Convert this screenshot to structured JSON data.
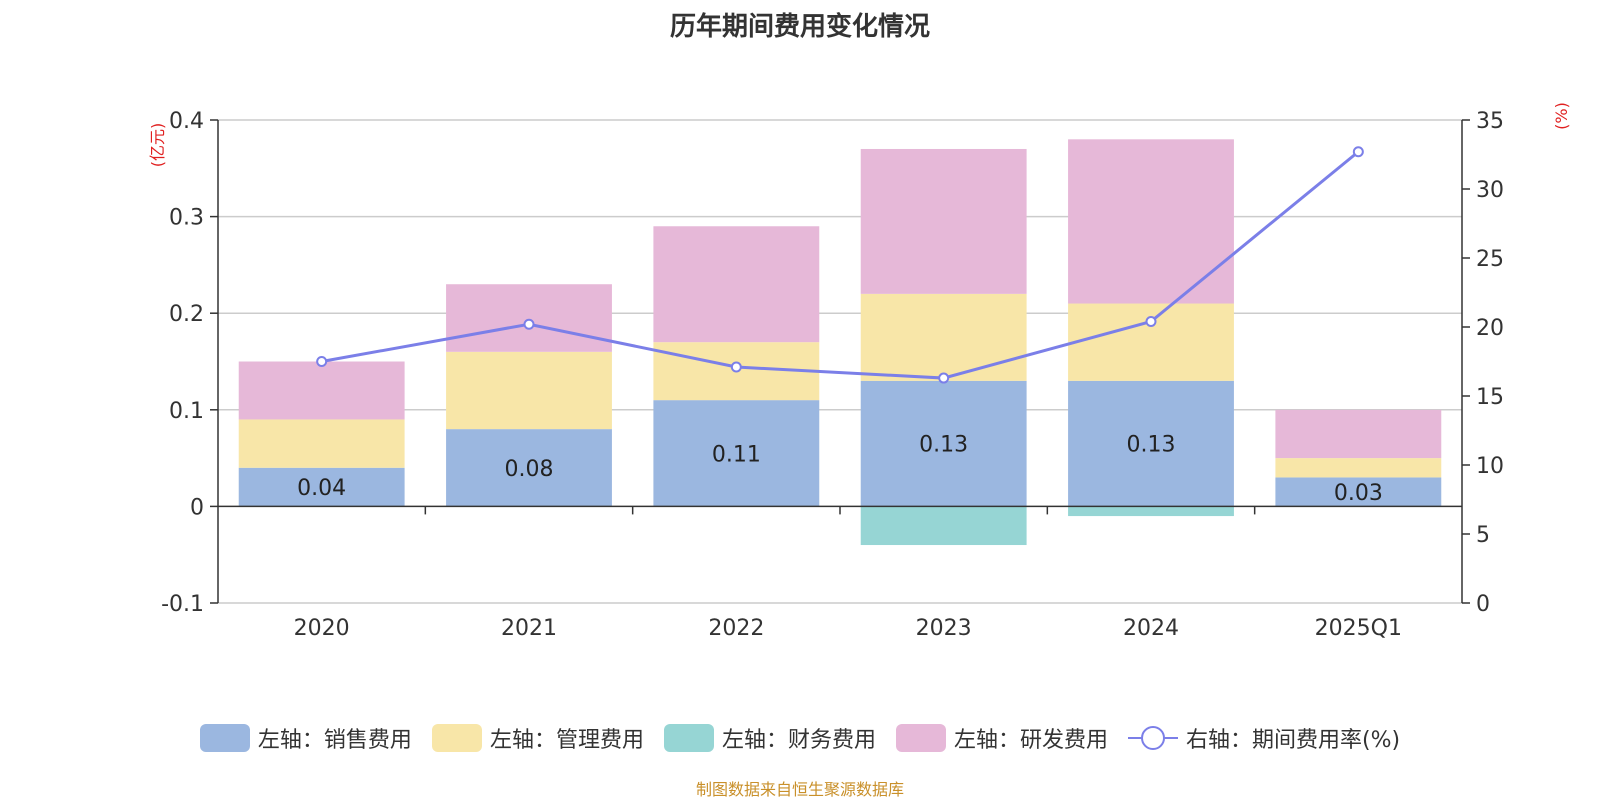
{
  "title": "历年期间费用变化情况",
  "source": "制图数据来自恒生聚源数据库",
  "colors": {
    "sales": "#9bb7e0",
    "admin": "#f8e6a8",
    "finance": "#96d5d4",
    "rd": "#e6b8d8",
    "rate": "#7b7fe8",
    "axis_unit": "#e02020"
  },
  "legend": [
    {
      "label": "左轴：销售费用",
      "color": "#9bb7e0"
    },
    {
      "label": "左轴：管理费用",
      "color": "#f8e6a8"
    },
    {
      "label": "左轴：财务费用",
      "color": "#96d5d4"
    },
    {
      "label": "左轴：研发费用",
      "color": "#e6b8d8"
    },
    {
      "label": "右轴：期间费用率(%)",
      "color": "#7b7fe8"
    }
  ],
  "chart_data": {
    "type": "bar",
    "stacked": true,
    "title": "历年期间费用变化情况",
    "categories": [
      "2020",
      "2021",
      "2022",
      "2023",
      "2024",
      "2025Q1"
    ],
    "left_axis": {
      "unit": "(亿元)",
      "ylim": [
        -0.1,
        0.4
      ],
      "ticks": [
        "-0.1",
        "0",
        "0.1",
        "0.2",
        "0.3",
        "0.4"
      ]
    },
    "right_axis": {
      "unit": "(%)",
      "ylim": [
        0,
        35
      ],
      "ticks": [
        "0",
        "5",
        "10",
        "15",
        "20",
        "25",
        "30",
        "35"
      ]
    },
    "series": [
      {
        "name": "左轴：销售费用",
        "axis": "left",
        "values": [
          0.04,
          0.08,
          0.11,
          0.13,
          0.13,
          0.03
        ],
        "labels": [
          "0.04",
          "0.08",
          "0.11",
          "0.13",
          "0.13",
          "0.03"
        ]
      },
      {
        "name": "左轴：管理费用",
        "axis": "left",
        "values": [
          0.05,
          0.08,
          0.06,
          0.09,
          0.08,
          0.02
        ]
      },
      {
        "name": "左轴：财务费用",
        "axis": "left",
        "values": [
          0.0,
          0.0,
          0.0,
          -0.04,
          -0.01,
          0.0
        ]
      },
      {
        "name": "左轴：研发费用",
        "axis": "left",
        "values": [
          0.06,
          0.07,
          0.12,
          0.15,
          0.17,
          0.05
        ]
      },
      {
        "name": "右轴：期间费用率(%)",
        "axis": "right",
        "type": "line",
        "values": [
          17.5,
          20.2,
          17.1,
          16.3,
          20.4,
          32.7
        ]
      }
    ]
  }
}
